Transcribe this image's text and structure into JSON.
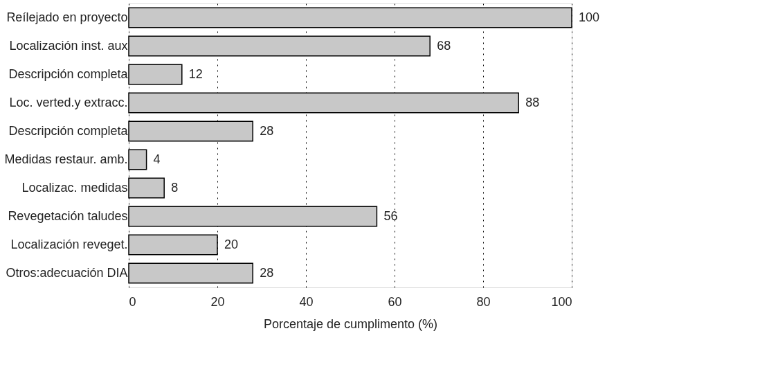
{
  "chart_data": {
    "type": "bar",
    "orientation": "horizontal",
    "xlabel": "Porcentaje de cumplimento (%)",
    "categories": [
      "Reílejado en proyecto",
      "Localización inst. aux",
      "Descripción completa",
      "Loc. verted.y extracc.",
      "Descripción completa",
      "Medidas restaur. amb.",
      "Localizac. medidas",
      "Revegetación taludes",
      "Localización reveget.",
      "Otros:adecuación DIA"
    ],
    "values": [
      100,
      68,
      12,
      88,
      28,
      4,
      8,
      56,
      20,
      28
    ],
    "color": "#c8c8c8",
    "xlim": [
      0,
      100
    ],
    "xticks": [
      0,
      20,
      40,
      60,
      80,
      100
    ],
    "grid": "x",
    "data_labels": true
  }
}
